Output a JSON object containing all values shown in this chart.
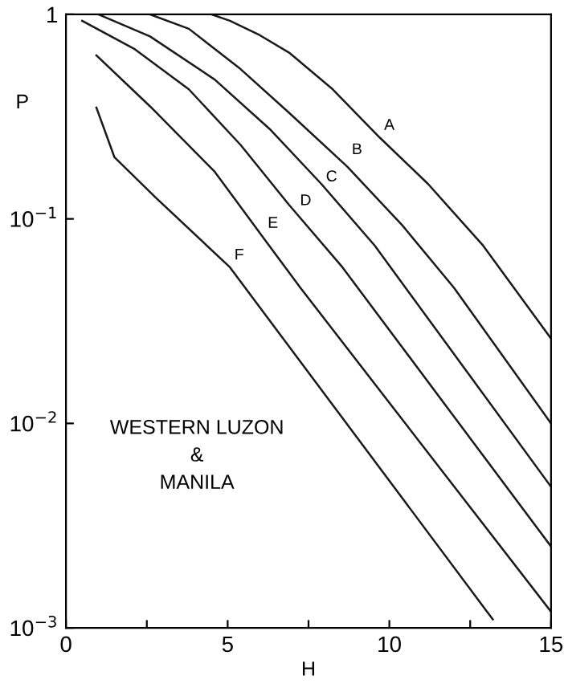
{
  "chart_data": {
    "type": "line",
    "xlabel": "H",
    "ylabel": "P",
    "series": [
      {
        "color": "#1a1a1a",
        "x": [
          4.5,
          5.07,
          6.0,
          6.9,
          8.25,
          9.7,
          11.2,
          12.9,
          15
        ],
        "values": [
          1.0,
          0.93,
          0.79,
          0.65,
          0.43,
          0.25,
          0.148,
          0.074,
          0.026
        ]
      },
      {
        "color": "#1a1a1a",
        "x": [
          2.6,
          3.8,
          5.4,
          6.9,
          8.7,
          10.4,
          12.0,
          15
        ],
        "values": [
          1.0,
          0.85,
          0.54,
          0.33,
          0.18,
          0.093,
          0.046,
          0.01
        ]
      },
      {
        "color": "#1a1a1a",
        "x": [
          1.0,
          2.6,
          4.6,
          6.3,
          7.9,
          9.55,
          15
        ],
        "values": [
          1.0,
          0.78,
          0.48,
          0.275,
          0.148,
          0.074,
          0.0049
        ]
      },
      {
        "color": "#1a1a1a",
        "x": [
          0.5,
          2.1,
          3.8,
          5.4,
          6.9,
          8.55,
          15
        ],
        "values": [
          0.93,
          0.68,
          0.43,
          0.23,
          0.117,
          0.058,
          0.0025
        ]
      },
      {
        "color": "#1a1a1a",
        "x": [
          0.94,
          2.6,
          4.6,
          6.1,
          7.25,
          15
        ],
        "values": [
          0.63,
          0.355,
          0.17,
          0.081,
          0.046,
          0.0012
        ]
      },
      {
        "color": "#1a1a1a",
        "x": [
          0.94,
          1.5,
          2.8,
          5.07,
          13.2
        ],
        "values": [
          0.35,
          0.2,
          0.126,
          0.058,
          0.0011
        ]
      }
    ],
    "annotations": [
      {
        "text": "A",
        "x": 9.7,
        "y": 0.25
      },
      {
        "text": "B",
        "x": 8.7,
        "y": 0.19
      },
      {
        "text": "C",
        "x": 7.9,
        "y": 0.14
      },
      {
        "text": "D",
        "x": 7.1,
        "y": 0.107
      },
      {
        "text": "E",
        "x": 6.1,
        "y": 0.083
      },
      {
        "text": "F",
        "x": 5.07,
        "y": 0.058
      },
      "WESTERN LUZON\n&\nMANILA"
    ],
    "log": "y",
    "xlim": [
      0,
      15
    ],
    "ylim": [
      0.001,
      1
    ],
    "xticks": [
      0,
      {
        "value": 2.5,
        "label": null
      },
      5,
      {
        "value": 7.5,
        "label": null
      },
      10,
      {
        "value": 12.5,
        "label": null
      },
      15
    ],
    "yticks": [
      {
        "value": 0.001,
        "label": "10$^{−3}$"
      },
      {
        "value": 0.01,
        "label": "10$^{−2}$"
      },
      {
        "value": 0.1,
        "label": "10$^{−1}$"
      },
      1
    ],
    "grid": false,
    "legend": false,
    "marker": "none",
    "line_style": "solid"
  }
}
